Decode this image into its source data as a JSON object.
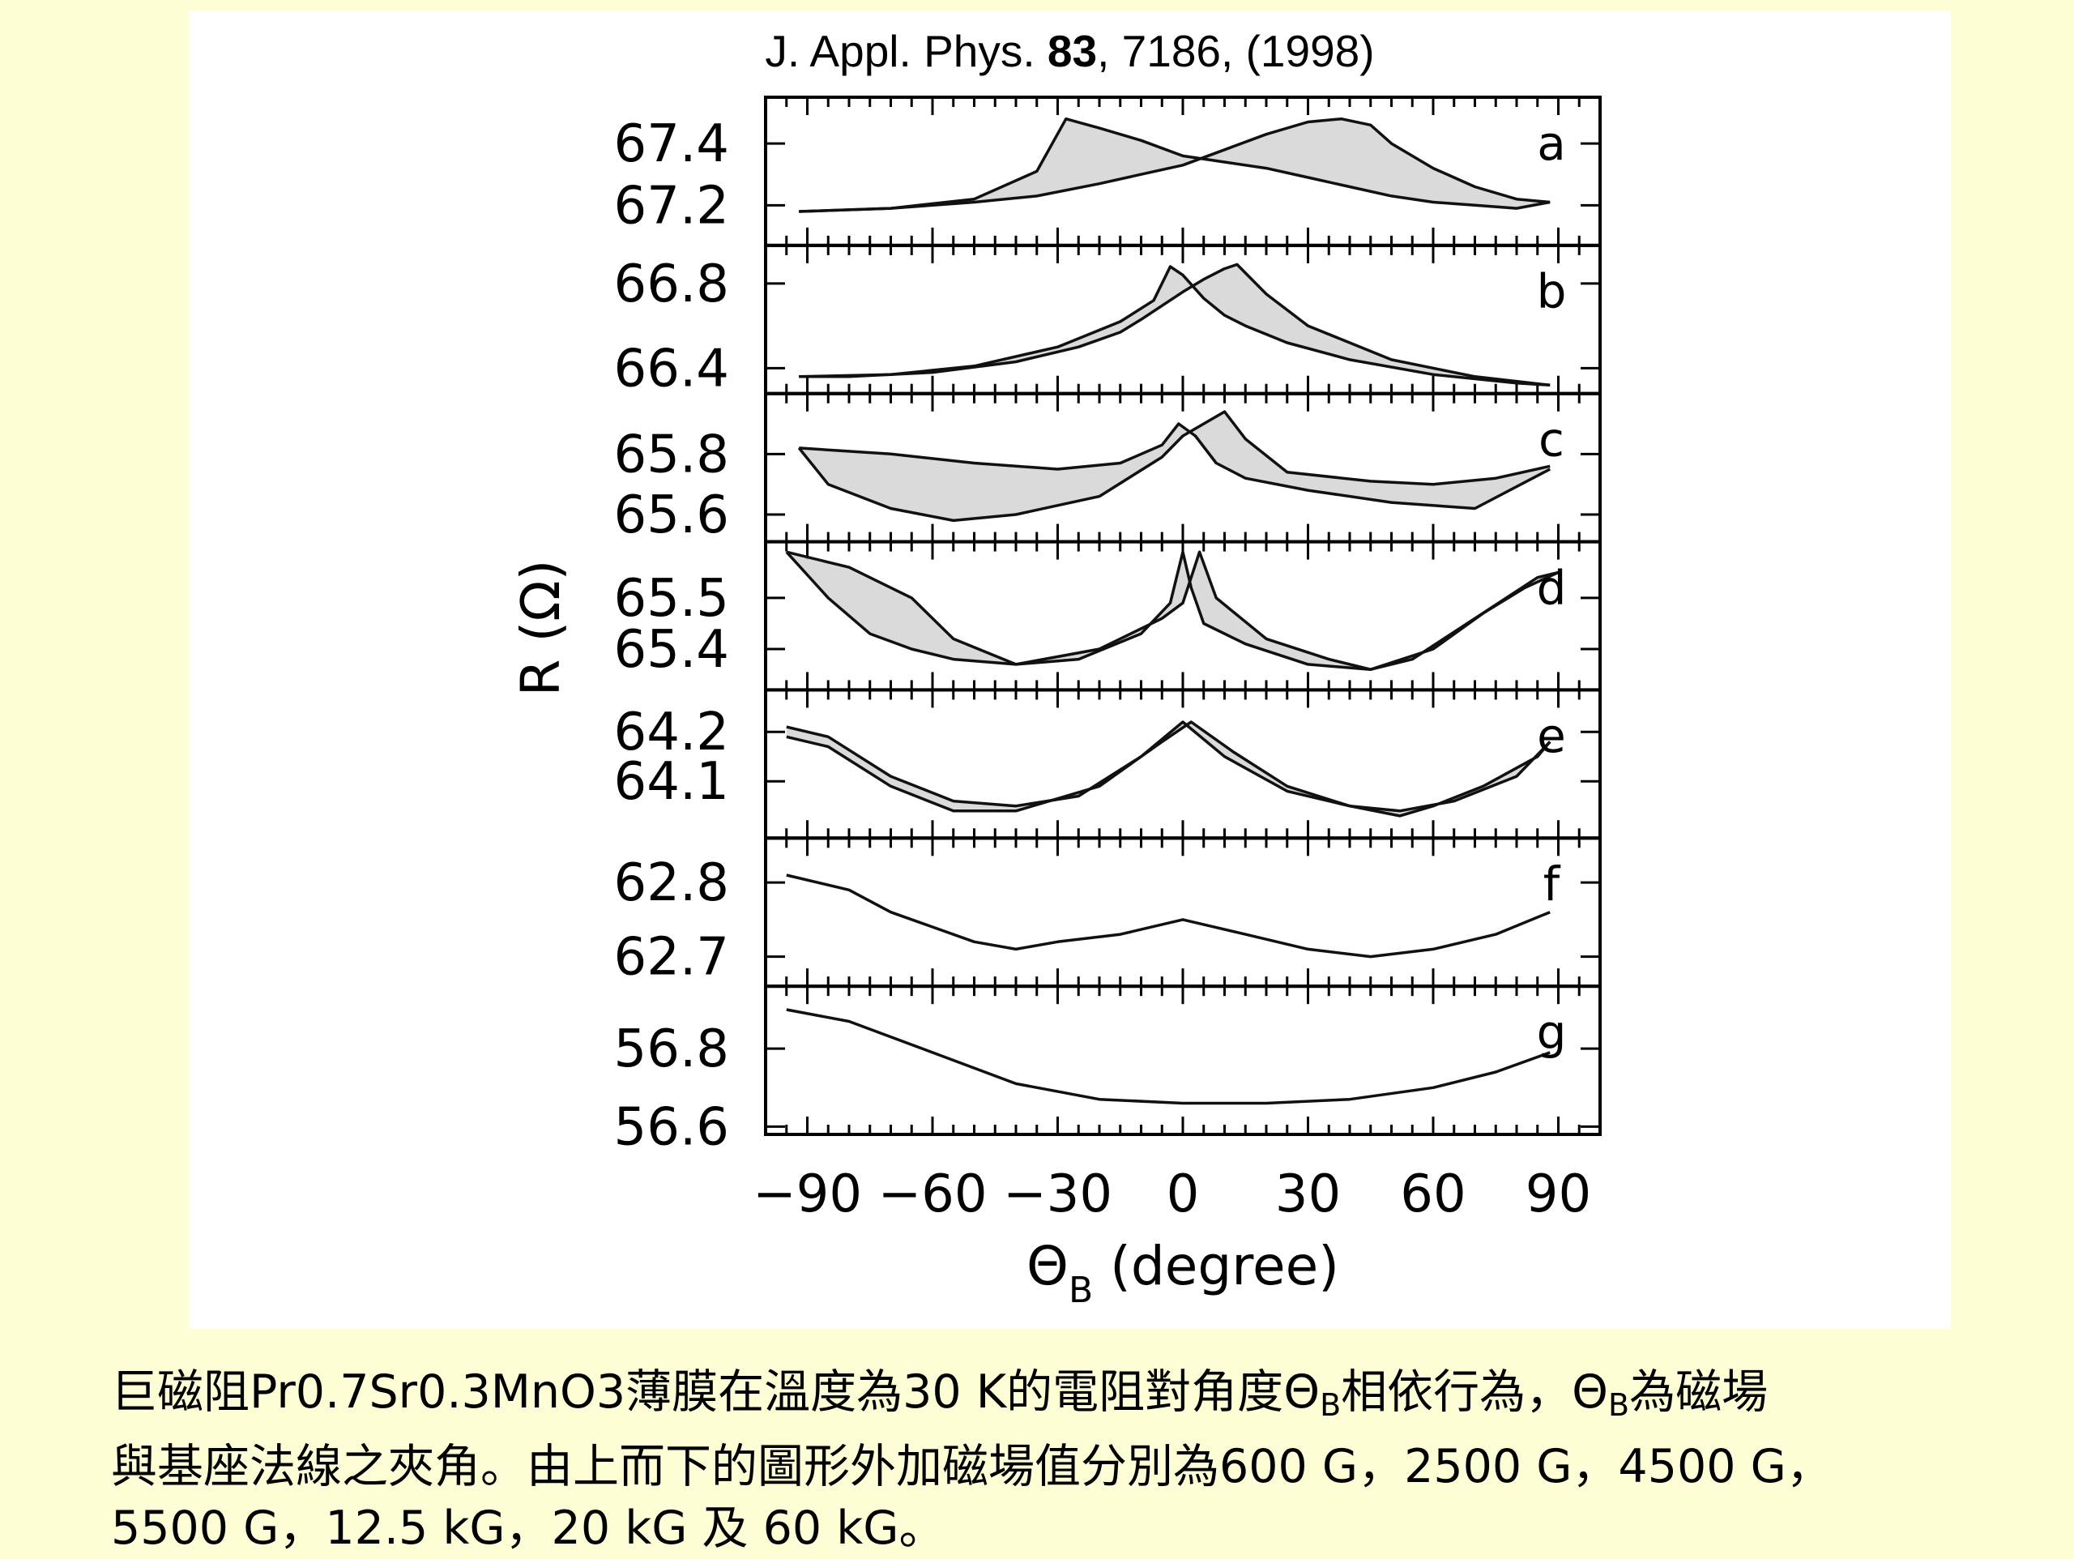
{
  "citation": {
    "journal": "J. Appl. Phys.",
    "volume": "83",
    "rest": ", 7186, (1998)"
  },
  "chart_data": {
    "type": "line",
    "xlabel_main": "Θ",
    "xlabel_sub": "B",
    "xlabel_unit": "(degree)",
    "ylabel": "R (Ω)",
    "xlim": [
      -100,
      100
    ],
    "x_ticks": [
      -90,
      -60,
      -30,
      0,
      30,
      60,
      90
    ],
    "x_tick_labels": [
      "−90",
      "−60",
      "−30",
      "0",
      "30",
      "60",
      "90"
    ],
    "panels": [
      {
        "letter": "a",
        "ylim": [
          67.07,
          67.55
        ],
        "y_ticks": [
          67.4,
          67.2
        ],
        "y_tick_labels": [
          "67.4",
          "67.2"
        ],
        "series": [
          {
            "x": [
              -92,
              -70,
              -50,
              -35,
              -28,
              -20,
              -10,
              0,
              10,
              20,
              30,
              40,
              50,
              60,
              70,
              80,
              88
            ],
            "y": [
              67.18,
              67.19,
              67.22,
              67.31,
              67.48,
              67.45,
              67.41,
              67.36,
              67.34,
              67.32,
              67.29,
              67.26,
              67.23,
              67.21,
              67.2,
              67.19,
              67.21
            ]
          },
          {
            "x": [
              -92,
              -70,
              -50,
              -35,
              -20,
              -10,
              0,
              10,
              20,
              30,
              38,
              45,
              50,
              60,
              70,
              80,
              88
            ],
            "y": [
              67.18,
              67.19,
              67.21,
              67.23,
              67.27,
              67.3,
              67.33,
              67.38,
              67.43,
              67.47,
              67.48,
              67.46,
              67.4,
              67.32,
              67.26,
              67.22,
              67.21
            ]
          }
        ]
      },
      {
        "letter": "b",
        "ylim": [
          66.28,
          66.98
        ],
        "y_ticks": [
          66.8,
          66.4
        ],
        "y_tick_labels": [
          "66.8",
          "66.4"
        ],
        "series": [
          {
            "x": [
              -92,
              -70,
              -50,
              -30,
              -15,
              -7,
              -3,
              0,
              5,
              10,
              15,
              25,
              40,
              60,
              80,
              88
            ],
            "y": [
              66.36,
              66.37,
              66.41,
              66.5,
              66.62,
              66.72,
              66.88,
              66.84,
              66.73,
              66.65,
              66.6,
              66.52,
              66.44,
              66.37,
              66.33,
              66.32
            ]
          },
          {
            "x": [
              -92,
              -80,
              -60,
              -40,
              -25,
              -15,
              -10,
              0,
              5,
              10,
              13,
              20,
              30,
              50,
              70,
              88
            ],
            "y": [
              66.36,
              66.36,
              66.38,
              66.43,
              66.5,
              66.57,
              66.63,
              66.76,
              66.82,
              66.87,
              66.89,
              66.75,
              66.6,
              66.44,
              66.36,
              66.32
            ]
          }
        ]
      },
      {
        "letter": "c",
        "ylim": [
          65.51,
          66.0
        ],
        "y_ticks": [
          65.8,
          65.6
        ],
        "y_tick_labels": [
          "65.8",
          "65.6"
        ],
        "series": [
          {
            "x": [
              -92,
              -70,
              -50,
              -30,
              -15,
              -5,
              -1,
              3,
              8,
              15,
              30,
              50,
              70,
              88
            ],
            "y": [
              65.82,
              65.8,
              65.77,
              65.75,
              65.77,
              65.83,
              65.9,
              65.86,
              65.77,
              65.72,
              65.68,
              65.64,
              65.62,
              65.75
            ]
          },
          {
            "x": [
              -92,
              -85,
              -70,
              -55,
              -40,
              -20,
              -5,
              0,
              5,
              10,
              15,
              25,
              45,
              60,
              75,
              88
            ],
            "y": [
              65.82,
              65.7,
              65.62,
              65.58,
              65.6,
              65.66,
              65.79,
              65.86,
              65.9,
              65.94,
              65.85,
              65.74,
              65.71,
              65.7,
              65.72,
              65.76
            ]
          }
        ]
      },
      {
        "letter": "d",
        "ylim": [
          65.32,
          65.61
        ],
        "y_ticks": [
          65.5,
          65.4
        ],
        "y_tick_labels": [
          "65.5",
          "65.4"
        ],
        "series": [
          {
            "x": [
              -95,
              -80,
              -65,
              -55,
              -40,
              -25,
              -10,
              -3,
              0,
              2,
              5,
              15,
              30,
              45,
              55,
              70,
              85,
              90
            ],
            "y": [
              65.59,
              65.56,
              65.5,
              65.42,
              65.37,
              65.38,
              65.43,
              65.49,
              65.59,
              65.52,
              65.45,
              65.41,
              65.37,
              65.36,
              65.38,
              65.46,
              65.54,
              65.55
            ]
          },
          {
            "x": [
              -95,
              -85,
              -75,
              -65,
              -55,
              -40,
              -20,
              -5,
              0,
              4,
              8,
              20,
              35,
              45,
              60,
              72,
              82,
              90
            ],
            "y": [
              65.59,
              65.5,
              65.43,
              65.4,
              65.38,
              65.37,
              65.4,
              65.46,
              65.49,
              65.59,
              65.5,
              65.42,
              65.38,
              65.36,
              65.4,
              65.47,
              65.52,
              65.55
            ]
          }
        ]
      },
      {
        "letter": "e",
        "ylim": [
          63.985,
          64.285
        ],
        "y_ticks": [
          64.2,
          64.1
        ],
        "y_tick_labels": [
          "64.2",
          "64.1"
        ],
        "series": [
          {
            "x": [
              -95,
              -85,
              -70,
              -55,
              -40,
              -25,
              -10,
              0,
              10,
              25,
              40,
              52,
              65,
              80,
              88
            ],
            "y": [
              64.21,
              64.19,
              64.11,
              64.06,
              64.05,
              64.07,
              64.15,
              64.22,
              64.15,
              64.08,
              64.05,
              64.04,
              64.06,
              64.11,
              64.18
            ]
          },
          {
            "x": [
              -95,
              -85,
              -70,
              -55,
              -40,
              -20,
              -5,
              2,
              12,
              25,
              40,
              52,
              60,
              72,
              85,
              88
            ],
            "y": [
              64.19,
              64.17,
              64.09,
              64.04,
              64.04,
              64.09,
              64.18,
              64.22,
              64.16,
              64.09,
              64.05,
              64.03,
              64.05,
              64.09,
              64.15,
              64.18
            ]
          }
        ]
      },
      {
        "letter": "f",
        "ylim": [
          62.66,
          62.86
        ],
        "y_ticks": [
          62.8,
          62.7
        ],
        "y_tick_labels": [
          "62.8",
          "62.7"
        ],
        "series": [
          {
            "x": [
              -95,
              -80,
              -70,
              -60,
              -50,
              -40,
              -30,
              -15,
              0,
              15,
              30,
              45,
              60,
              75,
              88
            ],
            "y": [
              62.81,
              62.79,
              62.76,
              62.74,
              62.72,
              62.71,
              62.72,
              62.73,
              62.75,
              62.73,
              62.71,
              62.7,
              62.71,
              62.73,
              62.76
            ]
          }
        ]
      },
      {
        "letter": "g",
        "ylim": [
          56.58,
          56.96
        ],
        "y_ticks": [
          56.8,
          56.6
        ],
        "y_tick_labels": [
          "56.8",
          "56.6"
        ],
        "series": [
          {
            "x": [
              -95,
              -80,
              -60,
              -40,
              -20,
              0,
              20,
              40,
              60,
              75,
              88
            ],
            "y": [
              56.9,
              56.87,
              56.79,
              56.71,
              56.67,
              56.66,
              56.66,
              56.67,
              56.7,
              56.74,
              56.79
            ]
          }
        ]
      }
    ]
  },
  "caption": {
    "line1_a": "巨磁阻Pr0.7Sr0.3MnO3薄膜在溫度為30 K的電阻對角度",
    "theta1": "Θ",
    "sub1": "B",
    "line1_b": "相依行為，",
    "theta2": "Θ",
    "sub2": "B",
    "line1_c": "為磁場",
    "line2": "與基座法線之夾角。由上而下的圖形外加磁場值分別為600 G，2500 G，4500 G，",
    "line3": "5500 G，12.5 kG，20 kG 及 60 kG。"
  }
}
